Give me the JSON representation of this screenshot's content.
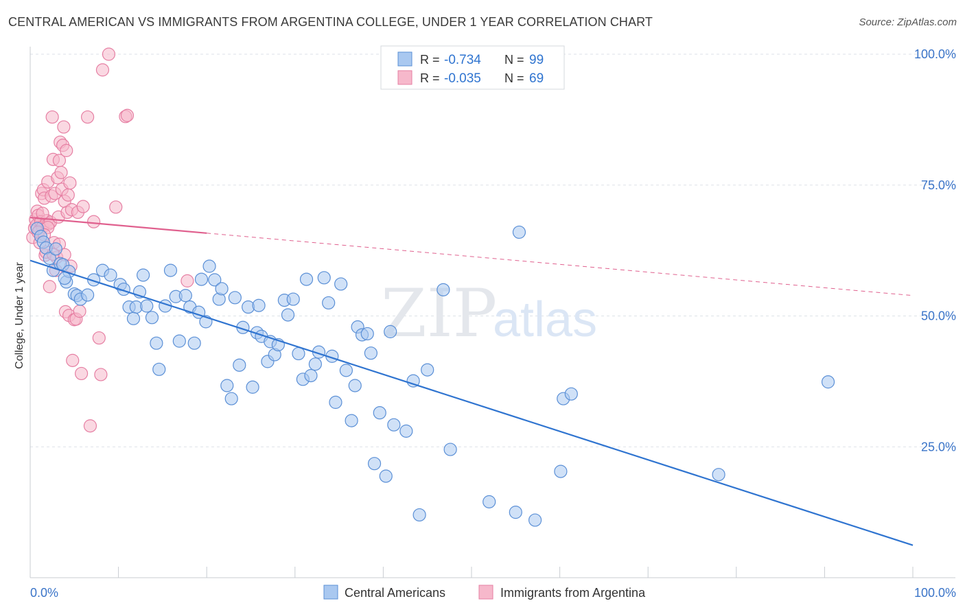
{
  "title": "CENTRAL AMERICAN VS IMMIGRANTS FROM ARGENTINA COLLEGE, UNDER 1 YEAR CORRELATION CHART",
  "source": "Source: ZipAtlas.com",
  "watermark": {
    "zip": "ZIP",
    "atlas": "atlas"
  },
  "colors": {
    "blue": "#2f74d0",
    "blue_fill": "#a9c8f0",
    "pink": "#e0608e",
    "pink_fill": "#f6b8cb",
    "axis_text_blue": "#3a74c8",
    "grid": "#dde2e8"
  },
  "stats_box": {
    "rows": [
      {
        "r_label": "R =",
        "r_value": "-0.734",
        "n_label": "N =",
        "n_value": "99"
      },
      {
        "r_label": "R =",
        "r_value": "-0.035",
        "n_label": "N =",
        "n_value": "69"
      }
    ]
  },
  "legend": {
    "items": [
      "Central Americans",
      "Immigrants from Argentina"
    ],
    "placement": "bottom-center"
  },
  "chart_data": {
    "type": "scatter",
    "title": "CENTRAL AMERICAN VS IMMIGRANTS FROM ARGENTINA COLLEGE, UNDER 1 YEAR CORRELATION CHART",
    "xlabel": "",
    "ylabel": "College, Under 1 year",
    "xlim": [
      0,
      100
    ],
    "ylim": [
      0,
      100
    ],
    "x_tick_labels": [
      "0.0%",
      "100.0%"
    ],
    "y_tick_labels": [
      "100.0%",
      "75.0%",
      "50.0%",
      "25.0%"
    ],
    "y_ticks": [
      100,
      75,
      50,
      25
    ],
    "grid": true,
    "series": [
      {
        "name": "Central Americans",
        "color": "#2f74d0",
        "r": -0.734,
        "n": 99,
        "trend": {
          "x": [
            0,
            100
          ],
          "y": [
            60.6,
            6.2
          ],
          "dashed_from": null
        },
        "points": [
          [
            0.8,
            66.7
          ],
          [
            1.2,
            65.2
          ],
          [
            1.5,
            64.1
          ],
          [
            1.8,
            63.0
          ],
          [
            2.2,
            61.0
          ],
          [
            2.6,
            58.7
          ],
          [
            3.4,
            60.0
          ],
          [
            3.7,
            59.8
          ],
          [
            4.1,
            56.5
          ],
          [
            4.4,
            58.5
          ],
          [
            5.0,
            54.2
          ],
          [
            5.3,
            53.9
          ],
          [
            5.7,
            53.2
          ],
          [
            7.2,
            56.9
          ],
          [
            8.2,
            58.7
          ],
          [
            9.1,
            57.8
          ],
          [
            10.2,
            56.0
          ],
          [
            10.6,
            55.1
          ],
          [
            11.2,
            51.7
          ],
          [
            12.0,
            51.7
          ],
          [
            12.4,
            54.6
          ],
          [
            12.8,
            57.8
          ],
          [
            13.2,
            51.9
          ],
          [
            13.8,
            49.7
          ],
          [
            14.3,
            44.8
          ],
          [
            14.6,
            39.8
          ],
          [
            15.3,
            51.9
          ],
          [
            15.9,
            58.7
          ],
          [
            16.5,
            53.7
          ],
          [
            16.9,
            45.2
          ],
          [
            17.6,
            53.9
          ],
          [
            18.1,
            51.7
          ],
          [
            18.6,
            44.8
          ],
          [
            19.1,
            50.7
          ],
          [
            19.4,
            57.0
          ],
          [
            19.9,
            48.9
          ],
          [
            20.3,
            59.5
          ],
          [
            20.9,
            56.9
          ],
          [
            21.4,
            53.2
          ],
          [
            21.7,
            55.2
          ],
          [
            22.3,
            36.7
          ],
          [
            22.8,
            34.2
          ],
          [
            23.2,
            53.5
          ],
          [
            23.7,
            40.6
          ],
          [
            24.1,
            47.8
          ],
          [
            24.7,
            51.7
          ],
          [
            25.2,
            36.4
          ],
          [
            25.7,
            46.8
          ],
          [
            26.2,
            46.1
          ],
          [
            26.9,
            41.3
          ],
          [
            27.2,
            45.1
          ],
          [
            27.7,
            42.6
          ],
          [
            28.1,
            44.5
          ],
          [
            28.8,
            53.0
          ],
          [
            29.2,
            50.2
          ],
          [
            29.8,
            53.2
          ],
          [
            30.4,
            42.8
          ],
          [
            30.9,
            37.9
          ],
          [
            31.3,
            57.0
          ],
          [
            31.8,
            38.6
          ],
          [
            32.3,
            40.8
          ],
          [
            32.7,
            43.1
          ],
          [
            33.3,
            57.3
          ],
          [
            33.8,
            52.5
          ],
          [
            34.2,
            42.3
          ],
          [
            34.6,
            33.5
          ],
          [
            35.2,
            56.1
          ],
          [
            35.8,
            39.6
          ],
          [
            36.4,
            30.0
          ],
          [
            36.8,
            36.7
          ],
          [
            37.1,
            47.9
          ],
          [
            37.6,
            46.4
          ],
          [
            38.2,
            46.6
          ],
          [
            38.6,
            42.9
          ],
          [
            39.0,
            21.8
          ],
          [
            39.6,
            31.5
          ],
          [
            40.3,
            19.4
          ],
          [
            40.8,
            47.0
          ],
          [
            41.2,
            29.2
          ],
          [
            42.6,
            28.0
          ],
          [
            43.4,
            37.6
          ],
          [
            44.1,
            12.0
          ],
          [
            45.0,
            39.7
          ],
          [
            46.8,
            55.0
          ],
          [
            47.6,
            24.5
          ],
          [
            52.0,
            14.5
          ],
          [
            55.0,
            12.5
          ],
          [
            55.4,
            66.0
          ],
          [
            57.2,
            11.0
          ],
          [
            60.1,
            20.3
          ],
          [
            60.4,
            34.2
          ],
          [
            61.3,
            35.1
          ],
          [
            78.0,
            19.7
          ],
          [
            90.4,
            37.4
          ],
          [
            2.9,
            62.8
          ],
          [
            3.9,
            57.2
          ],
          [
            6.5,
            54.0
          ],
          [
            11.7,
            49.5
          ],
          [
            25.9,
            52.0
          ]
        ]
      },
      {
        "name": "Immigrants from Argentina",
        "color": "#e0608e",
        "r": -0.035,
        "n": 69,
        "trend": {
          "x": [
            0,
            100
          ],
          "y": [
            68.8,
            53.9
          ],
          "dashed_from": 20
        },
        "points": [
          [
            0.3,
            65.0
          ],
          [
            0.5,
            66.8
          ],
          [
            0.6,
            68.4
          ],
          [
            0.7,
            67.3
          ],
          [
            0.8,
            70.0
          ],
          [
            0.9,
            69.2
          ],
          [
            1.0,
            66.2
          ],
          [
            1.1,
            64.0
          ],
          [
            1.2,
            68.0
          ],
          [
            1.3,
            73.4
          ],
          [
            1.4,
            67.0
          ],
          [
            1.5,
            74.1
          ],
          [
            1.6,
            72.5
          ],
          [
            1.7,
            61.6
          ],
          [
            1.8,
            62.2
          ],
          [
            1.9,
            68.2
          ],
          [
            2.0,
            75.6
          ],
          [
            2.1,
            67.6
          ],
          [
            2.2,
            55.6
          ],
          [
            2.3,
            67.9
          ],
          [
            2.4,
            72.9
          ],
          [
            2.5,
            88.0
          ],
          [
            2.6,
            79.9
          ],
          [
            2.7,
            64.0
          ],
          [
            2.8,
            73.4
          ],
          [
            2.9,
            58.7
          ],
          [
            3.0,
            61.2
          ],
          [
            3.1,
            76.4
          ],
          [
            3.2,
            68.9
          ],
          [
            3.3,
            79.7
          ],
          [
            3.4,
            83.2
          ],
          [
            3.5,
            77.4
          ],
          [
            3.6,
            74.2
          ],
          [
            3.7,
            82.6
          ],
          [
            3.8,
            86.1
          ],
          [
            3.9,
            71.9
          ],
          [
            4.0,
            50.8
          ],
          [
            4.1,
            81.6
          ],
          [
            4.2,
            69.8
          ],
          [
            4.3,
            73.1
          ],
          [
            4.4,
            50.1
          ],
          [
            4.5,
            75.4
          ],
          [
            4.6,
            59.5
          ],
          [
            4.7,
            70.3
          ],
          [
            4.8,
            41.5
          ],
          [
            5.0,
            49.3
          ],
          [
            5.2,
            49.4
          ],
          [
            5.4,
            69.8
          ],
          [
            5.6,
            50.9
          ],
          [
            5.8,
            39.0
          ],
          [
            6.0,
            70.9
          ],
          [
            6.5,
            88.0
          ],
          [
            6.8,
            29.0
          ],
          [
            7.2,
            68.0
          ],
          [
            7.8,
            45.8
          ],
          [
            8.0,
            38.8
          ],
          [
            8.2,
            97.0
          ],
          [
            8.9,
            100.0
          ],
          [
            9.7,
            70.8
          ],
          [
            10.8,
            88.1
          ],
          [
            11.0,
            88.3
          ],
          [
            17.8,
            56.7
          ],
          [
            1.4,
            69.6
          ],
          [
            2.0,
            66.9
          ],
          [
            2.6,
            61.8
          ],
          [
            3.3,
            63.7
          ],
          [
            0.9,
            66.0
          ],
          [
            1.6,
            65.5
          ],
          [
            3.9,
            61.7
          ]
        ]
      }
    ]
  }
}
